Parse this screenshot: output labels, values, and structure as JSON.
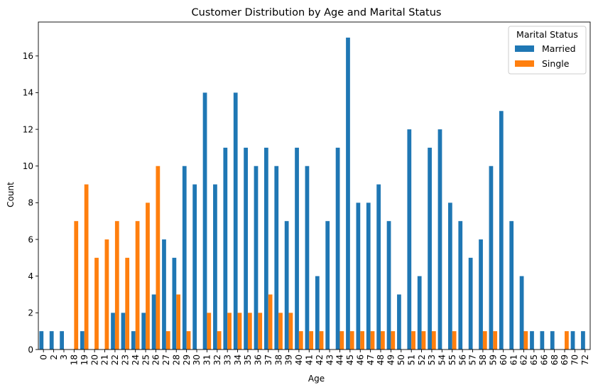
{
  "chart_data": {
    "type": "bar",
    "title": "Customer Distribution by Age and Marital Status",
    "xlabel": "Age",
    "ylabel": "Count",
    "ylim": [
      0,
      17.85
    ],
    "yticks": [
      0,
      2,
      4,
      6,
      8,
      10,
      12,
      14,
      16
    ],
    "categories": [
      "0",
      "2",
      "3",
      "18",
      "19",
      "20",
      "21",
      "22",
      "23",
      "24",
      "25",
      "26",
      "27",
      "28",
      "29",
      "30",
      "31",
      "32",
      "33",
      "34",
      "35",
      "36",
      "37",
      "38",
      "39",
      "40",
      "41",
      "42",
      "43",
      "44",
      "45",
      "46",
      "47",
      "48",
      "49",
      "50",
      "51",
      "52",
      "53",
      "54",
      "55",
      "56",
      "57",
      "58",
      "59",
      "60",
      "61",
      "62",
      "65",
      "66",
      "68",
      "69",
      "70",
      "72"
    ],
    "series": [
      {
        "name": "Married",
        "color": "#1f77b4",
        "values": [
          1,
          1,
          1,
          0,
          1,
          0,
          0,
          2,
          2,
          1,
          2,
          3,
          6,
          5,
          10,
          9,
          14,
          9,
          11,
          14,
          11,
          10,
          11,
          10,
          7,
          11,
          10,
          4,
          7,
          11,
          17,
          8,
          8,
          9,
          7,
          3,
          12,
          4,
          11,
          12,
          8,
          7,
          5,
          6,
          10,
          13,
          7,
          4,
          1,
          1,
          1,
          0,
          1,
          1
        ]
      },
      {
        "name": "Single",
        "color": "#ff7f0e",
        "values": [
          0,
          0,
          0,
          7,
          9,
          5,
          6,
          7,
          5,
          7,
          8,
          10,
          1,
          3,
          1,
          0,
          2,
          1,
          2,
          2,
          2,
          2,
          3,
          2,
          2,
          1,
          1,
          1,
          0,
          1,
          1,
          1,
          1,
          1,
          1,
          0,
          1,
          1,
          1,
          0,
          1,
          0,
          0,
          1,
          1,
          0,
          0,
          1,
          0,
          0,
          0,
          1,
          0,
          0
        ]
      }
    ],
    "legend": {
      "title": "Marital Status",
      "placement": "top-right"
    },
    "grid": false
  }
}
